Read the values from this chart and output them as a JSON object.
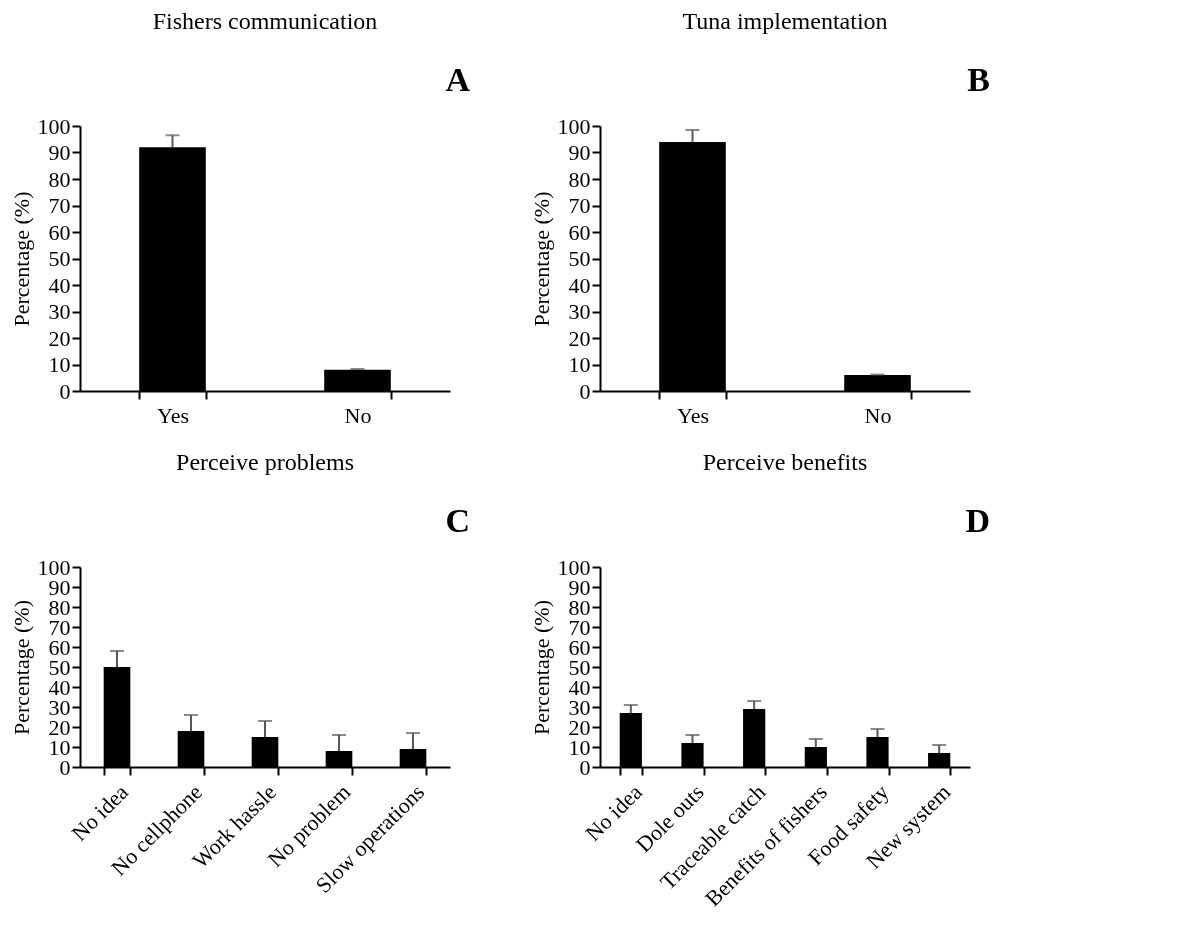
{
  "chart_data": [
    {
      "type": "bar",
      "title": "Fishers communication",
      "ylabel": "Percentage (%)",
      "categories": [
        "Yes",
        "No"
      ],
      "values": [
        92,
        8
      ],
      "errors": [
        [
          92,
          96.5
        ],
        [
          8,
          8.3
        ]
      ],
      "color": "#000000",
      "ylim": [
        0,
        100
      ],
      "yticks": [
        0,
        10,
        20,
        30,
        40,
        50,
        60,
        70,
        80,
        90,
        100
      ],
      "grid": false,
      "annotations": [
        "A"
      ]
    },
    {
      "type": "bar",
      "title": "Tuna implementation",
      "ylabel": "Percentage (%)",
      "categories": [
        "Yes",
        "No"
      ],
      "values": [
        94,
        6
      ],
      "errors": [
        [
          94,
          98.5
        ],
        [
          6,
          6.2
        ]
      ],
      "color": "#000000",
      "ylim": [
        0,
        100
      ],
      "yticks": [
        0,
        10,
        20,
        30,
        40,
        50,
        60,
        70,
        80,
        90,
        100
      ],
      "grid": false,
      "annotations": [
        "B"
      ]
    },
    {
      "type": "bar",
      "title": "Perceive problems",
      "ylabel": "Percentage (%)",
      "categories": [
        "No idea",
        "No cellphone",
        "Work hassle",
        "No problem",
        "Slow operations"
      ],
      "values": [
        50,
        18,
        15,
        8,
        9
      ],
      "errors": [
        [
          50,
          58
        ],
        [
          18,
          26
        ],
        [
          15,
          23
        ],
        [
          8,
          16
        ],
        [
          9,
          17
        ]
      ],
      "color": "#000000",
      "ylim": [
        0,
        100
      ],
      "yticks": [
        0,
        10,
        20,
        30,
        40,
        50,
        60,
        70,
        80,
        90,
        100
      ],
      "grid": false,
      "annotations": [
        "C"
      ]
    },
    {
      "type": "bar",
      "title": "Perceive benefits",
      "ylabel": "Percentage (%)",
      "categories": [
        "No idea",
        "Dole outs",
        "Traceable catch",
        "Benefits of fishers",
        "Food safety",
        "New system"
      ],
      "values": [
        27,
        12,
        29,
        10,
        15,
        7
      ],
      "errors": [
        [
          27,
          31
        ],
        [
          12,
          16
        ],
        [
          29,
          33
        ],
        [
          10,
          14
        ],
        [
          15,
          19
        ],
        [
          7,
          11
        ]
      ],
      "color": "#000000",
      "ylim": [
        0,
        100
      ],
      "yticks": [
        0,
        10,
        20,
        30,
        40,
        50,
        60,
        70,
        80,
        90,
        100
      ],
      "grid": false,
      "annotations": [
        "D"
      ]
    }
  ]
}
